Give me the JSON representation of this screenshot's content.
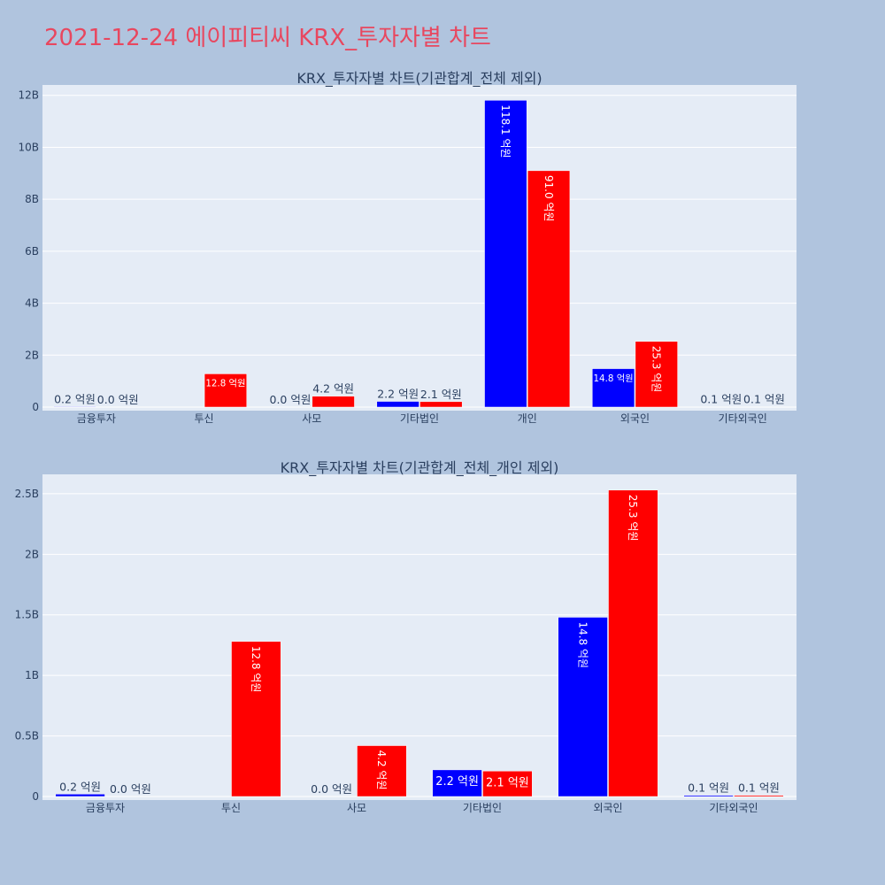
{
  "page": {
    "title": "2021-12-24 에이피티씨 KRX_투자자별 차트"
  },
  "colors": {
    "buy": "#0000ff",
    "sell": "#ff0000",
    "background": "#b0c4de",
    "plot_background": "#e5ecf6",
    "grid": "#ffffff",
    "title": "#e8475f"
  },
  "chart_data": [
    {
      "type": "bar",
      "title": "KRX_투자자별 차트(기관합계_전체 제외)",
      "categories": [
        "금융투자",
        "투신",
        "사모",
        "기타법인",
        "개인",
        "외국인",
        "기타외국인"
      ],
      "series": [
        {
          "color": "#0000ff",
          "values": [
            20000000,
            0,
            0,
            220000000,
            11810000000,
            1480000000,
            10000000
          ],
          "labels": [
            "0.2 억원",
            "",
            "0.0 억원",
            "2.2 억원",
            "118.1 억원",
            "14.8 억원",
            "0.1 억원"
          ]
        },
        {
          "color": "#ff0000",
          "values": [
            0,
            1280000000,
            420000000,
            210000000,
            9100000000,
            2530000000,
            10000000
          ],
          "labels": [
            "0.0 억원",
            "12.8 억원",
            "4.2 억원",
            "2.1 억원",
            "91.0 억원",
            "25.3 억원",
            "0.1 억원"
          ]
        }
      ],
      "ylim": [
        0,
        12400000000
      ],
      "yticks": [
        0,
        2000000000,
        4000000000,
        6000000000,
        8000000000,
        10000000000,
        12000000000
      ],
      "ytick_labels": [
        "0",
        "2B",
        "4B",
        "6B",
        "8B",
        "10B",
        "12B"
      ],
      "xlabel": "",
      "ylabel": "",
      "grid": true
    },
    {
      "type": "bar",
      "title": "KRX_투자자별 차트(기관합계_전체_개인 제외)",
      "categories": [
        "금융투자",
        "투신",
        "사모",
        "기타법인",
        "외국인",
        "기타외국인"
      ],
      "series": [
        {
          "color": "#0000ff",
          "values": [
            20000000,
            0,
            0,
            220000000,
            1480000000,
            10000000
          ],
          "labels": [
            "0.2 억원",
            "",
            "0.0 억원",
            "2.2 억원",
            "14.8 억원",
            "0.1 억원"
          ]
        },
        {
          "color": "#ff0000",
          "values": [
            0,
            1280000000,
            420000000,
            210000000,
            2530000000,
            10000000
          ],
          "labels": [
            "0.0 억원",
            "12.8 억원",
            "4.2 억원",
            "2.1 억원",
            "25.3 억원",
            "0.1 억원"
          ]
        }
      ],
      "ylim": [
        0,
        2660000000
      ],
      "yticks": [
        0,
        500000000,
        1000000000,
        1500000000,
        2000000000,
        2500000000
      ],
      "ytick_labels": [
        "0",
        "0.5B",
        "1B",
        "1.5B",
        "2B",
        "2.5B"
      ],
      "xlabel": "",
      "ylabel": "",
      "grid": true
    }
  ]
}
